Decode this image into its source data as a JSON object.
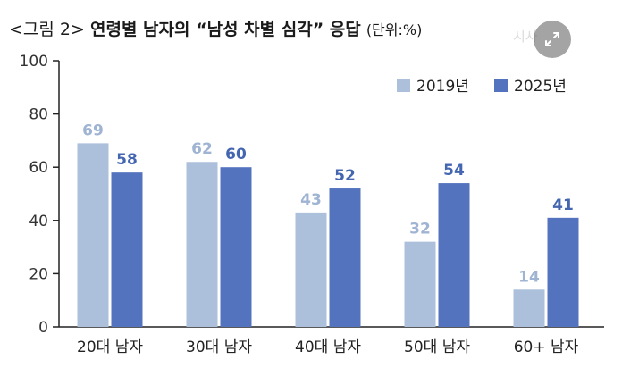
{
  "title": {
    "prefix": "<그림 2>",
    "main": "연령별 남자의 “남성 차별 심각” 응답",
    "unit": "(단위:%)"
  },
  "watermark": "시사",
  "expand_button": {
    "icon": "expand-icon"
  },
  "colors": {
    "series_2019": "#adc0db",
    "series_2025": "#5473be",
    "label_2019": "#9fb3d2",
    "label_2025": "#4466b0",
    "axis": "#222222"
  },
  "chart_data": {
    "type": "bar",
    "title": "연령별 남자의 “남성 차별 심각” 응답",
    "ylabel": "",
    "xlabel": "",
    "ylim": [
      0,
      100
    ],
    "yticks": [
      "0",
      "20",
      "40",
      "60",
      "80",
      "100"
    ],
    "categories": [
      "20대 남자",
      "30대 남자",
      "40대 남자",
      "50대 남자",
      "60+ 남자"
    ],
    "series": [
      {
        "name": "2019년",
        "values": [
          69,
          62,
          43,
          32,
          14
        ]
      },
      {
        "name": "2025년",
        "values": [
          58,
          60,
          52,
          54,
          41
        ]
      }
    ],
    "legend_position": "top-right",
    "grid": false,
    "data_labels": true
  }
}
